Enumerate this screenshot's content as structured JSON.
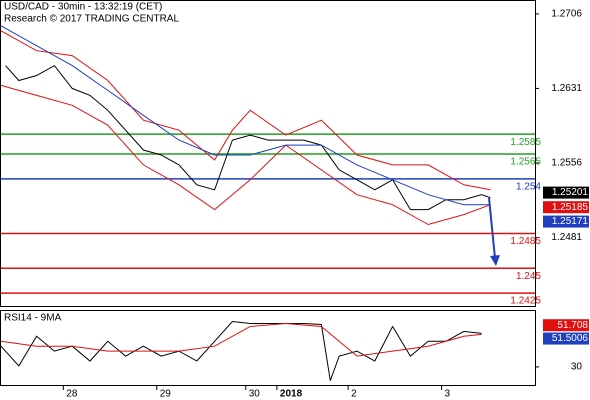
{
  "chart_data": [
    {
      "type": "line",
      "title": "USD/CAD - 30min - 13:32:19 (CET)",
      "subtitle": "Research © 2017 TRADING CENTRAL",
      "xlim": [
        0,
        120
      ],
      "ylim": [
        1.2412,
        1.2719
      ],
      "yticks": [
        1.2706,
        1.2631,
        1.2556,
        1.2481
      ],
      "levels": [
        {
          "value": 1.2585,
          "color": "#22a022"
        },
        {
          "value": 1.2565,
          "color": "#22a022"
        },
        {
          "value": 1.254,
          "color": "#1f3fbf"
        },
        {
          "value": 1.2485,
          "color": "#e01010"
        },
        {
          "value": 1.245,
          "color": "#e01010"
        },
        {
          "value": 1.2425,
          "color": "#e01010"
        }
      ],
      "series": [
        {
          "color": "#000000",
          "x": [
            1,
            4,
            8,
            12,
            16,
            20,
            24,
            28,
            32,
            36,
            40,
            44,
            48,
            52,
            56,
            60,
            64,
            68,
            72,
            76,
            80,
            84,
            88,
            92,
            96,
            100,
            104,
            108,
            110
          ],
          "values": [
            1.2654,
            1.2639,
            1.2644,
            1.2654,
            1.2631,
            1.2624,
            1.2609,
            1.2589,
            1.2569,
            1.2564,
            1.2554,
            1.2534,
            1.2529,
            1.2579,
            1.2584,
            1.2579,
            1.2579,
            1.2579,
            1.2574,
            1.2549,
            1.2539,
            1.2529,
            1.2539,
            1.2509,
            1.2509,
            1.2519,
            1.2519,
            1.2524,
            1.2521
          ]
        },
        {
          "color": "#e01010",
          "x": [
            0,
            8,
            16,
            24,
            32,
            40,
            48,
            52,
            56,
            64,
            72,
            80,
            88,
            96,
            104,
            110
          ],
          "values": [
            1.2689,
            1.2669,
            1.2664,
            1.2639,
            1.2599,
            1.2589,
            1.2559,
            1.2589,
            1.2609,
            1.2584,
            1.2599,
            1.2564,
            1.2554,
            1.2554,
            1.2534,
            1.2529
          ]
        },
        {
          "color": "#e01010",
          "x": [
            0,
            8,
            16,
            24,
            32,
            40,
            48,
            56,
            64,
            72,
            80,
            88,
            96,
            104,
            110
          ],
          "values": [
            1.2634,
            1.2624,
            1.2614,
            1.2594,
            1.2554,
            1.2534,
            1.2509,
            1.2539,
            1.2574,
            1.2549,
            1.2524,
            1.2514,
            1.2494,
            1.2504,
            1.2514
          ]
        },
        {
          "color": "#1f3fbf",
          "x": [
            0,
            8,
            16,
            24,
            32,
            40,
            48,
            56,
            64,
            72,
            80,
            88,
            96,
            104,
            110
          ],
          "values": [
            1.2694,
            1.2674,
            1.2654,
            1.2629,
            1.2604,
            1.2579,
            1.2564,
            1.2564,
            1.2574,
            1.2574,
            1.2554,
            1.2539,
            1.2524,
            1.2514,
            1.2514
          ]
        }
      ],
      "last_values": [
        {
          "value": 1.25201,
          "color": "#000000"
        },
        {
          "value": 1.25185,
          "color": "#e01010"
        },
        {
          "value": 1.25171,
          "color": "#1f3fbf"
        }
      ]
    },
    {
      "type": "line",
      "title": "RSI14 - 9MA",
      "xlim": [
        0,
        120
      ],
      "ylim": [
        19,
        64
      ],
      "yticks": [
        30
      ],
      "xticks": [
        {
          "value": 14,
          "label": "28"
        },
        {
          "value": 35,
          "label": "29"
        },
        {
          "value": 55,
          "label": "30"
        },
        {
          "value": 62,
          "label": "2018",
          "bold": true
        },
        {
          "value": 78,
          "label": "2"
        },
        {
          "value": 99,
          "label": "3"
        }
      ],
      "series": [
        {
          "color": "#000000",
          "x": [
            0,
            4,
            8,
            12,
            16,
            20,
            24,
            28,
            32,
            36,
            40,
            44,
            48,
            52,
            56,
            60,
            64,
            68,
            72,
            74,
            76,
            80,
            84,
            88,
            92,
            96,
            100,
            104,
            108
          ],
          "values": [
            42.6,
            30.6,
            48.6,
            39.6,
            42.6,
            33.6,
            45.6,
            36.6,
            42.6,
            36.6,
            39.6,
            33.6,
            45.6,
            57.6,
            56.4,
            56.4,
            56.4,
            56.4,
            55.8,
            21.6,
            36.6,
            39.6,
            33.6,
            54.6,
            36.6,
            45.6,
            45.6,
            51.6,
            50.4
          ]
        },
        {
          "color": "#e01010",
          "x": [
            0,
            8,
            16,
            24,
            32,
            40,
            48,
            56,
            64,
            72,
            80,
            88,
            96,
            104,
            108
          ],
          "values": [
            45.6,
            42.6,
            42.6,
            39.6,
            39.6,
            39.6,
            42.6,
            54.6,
            56.4,
            54.6,
            36.6,
            39.6,
            42.6,
            48.6,
            49.8
          ]
        }
      ],
      "last_values": [
        {
          "value": 51.708,
          "color": "#e01010"
        },
        {
          "value": 51.5006,
          "color": "#1f3fbf"
        }
      ]
    }
  ]
}
